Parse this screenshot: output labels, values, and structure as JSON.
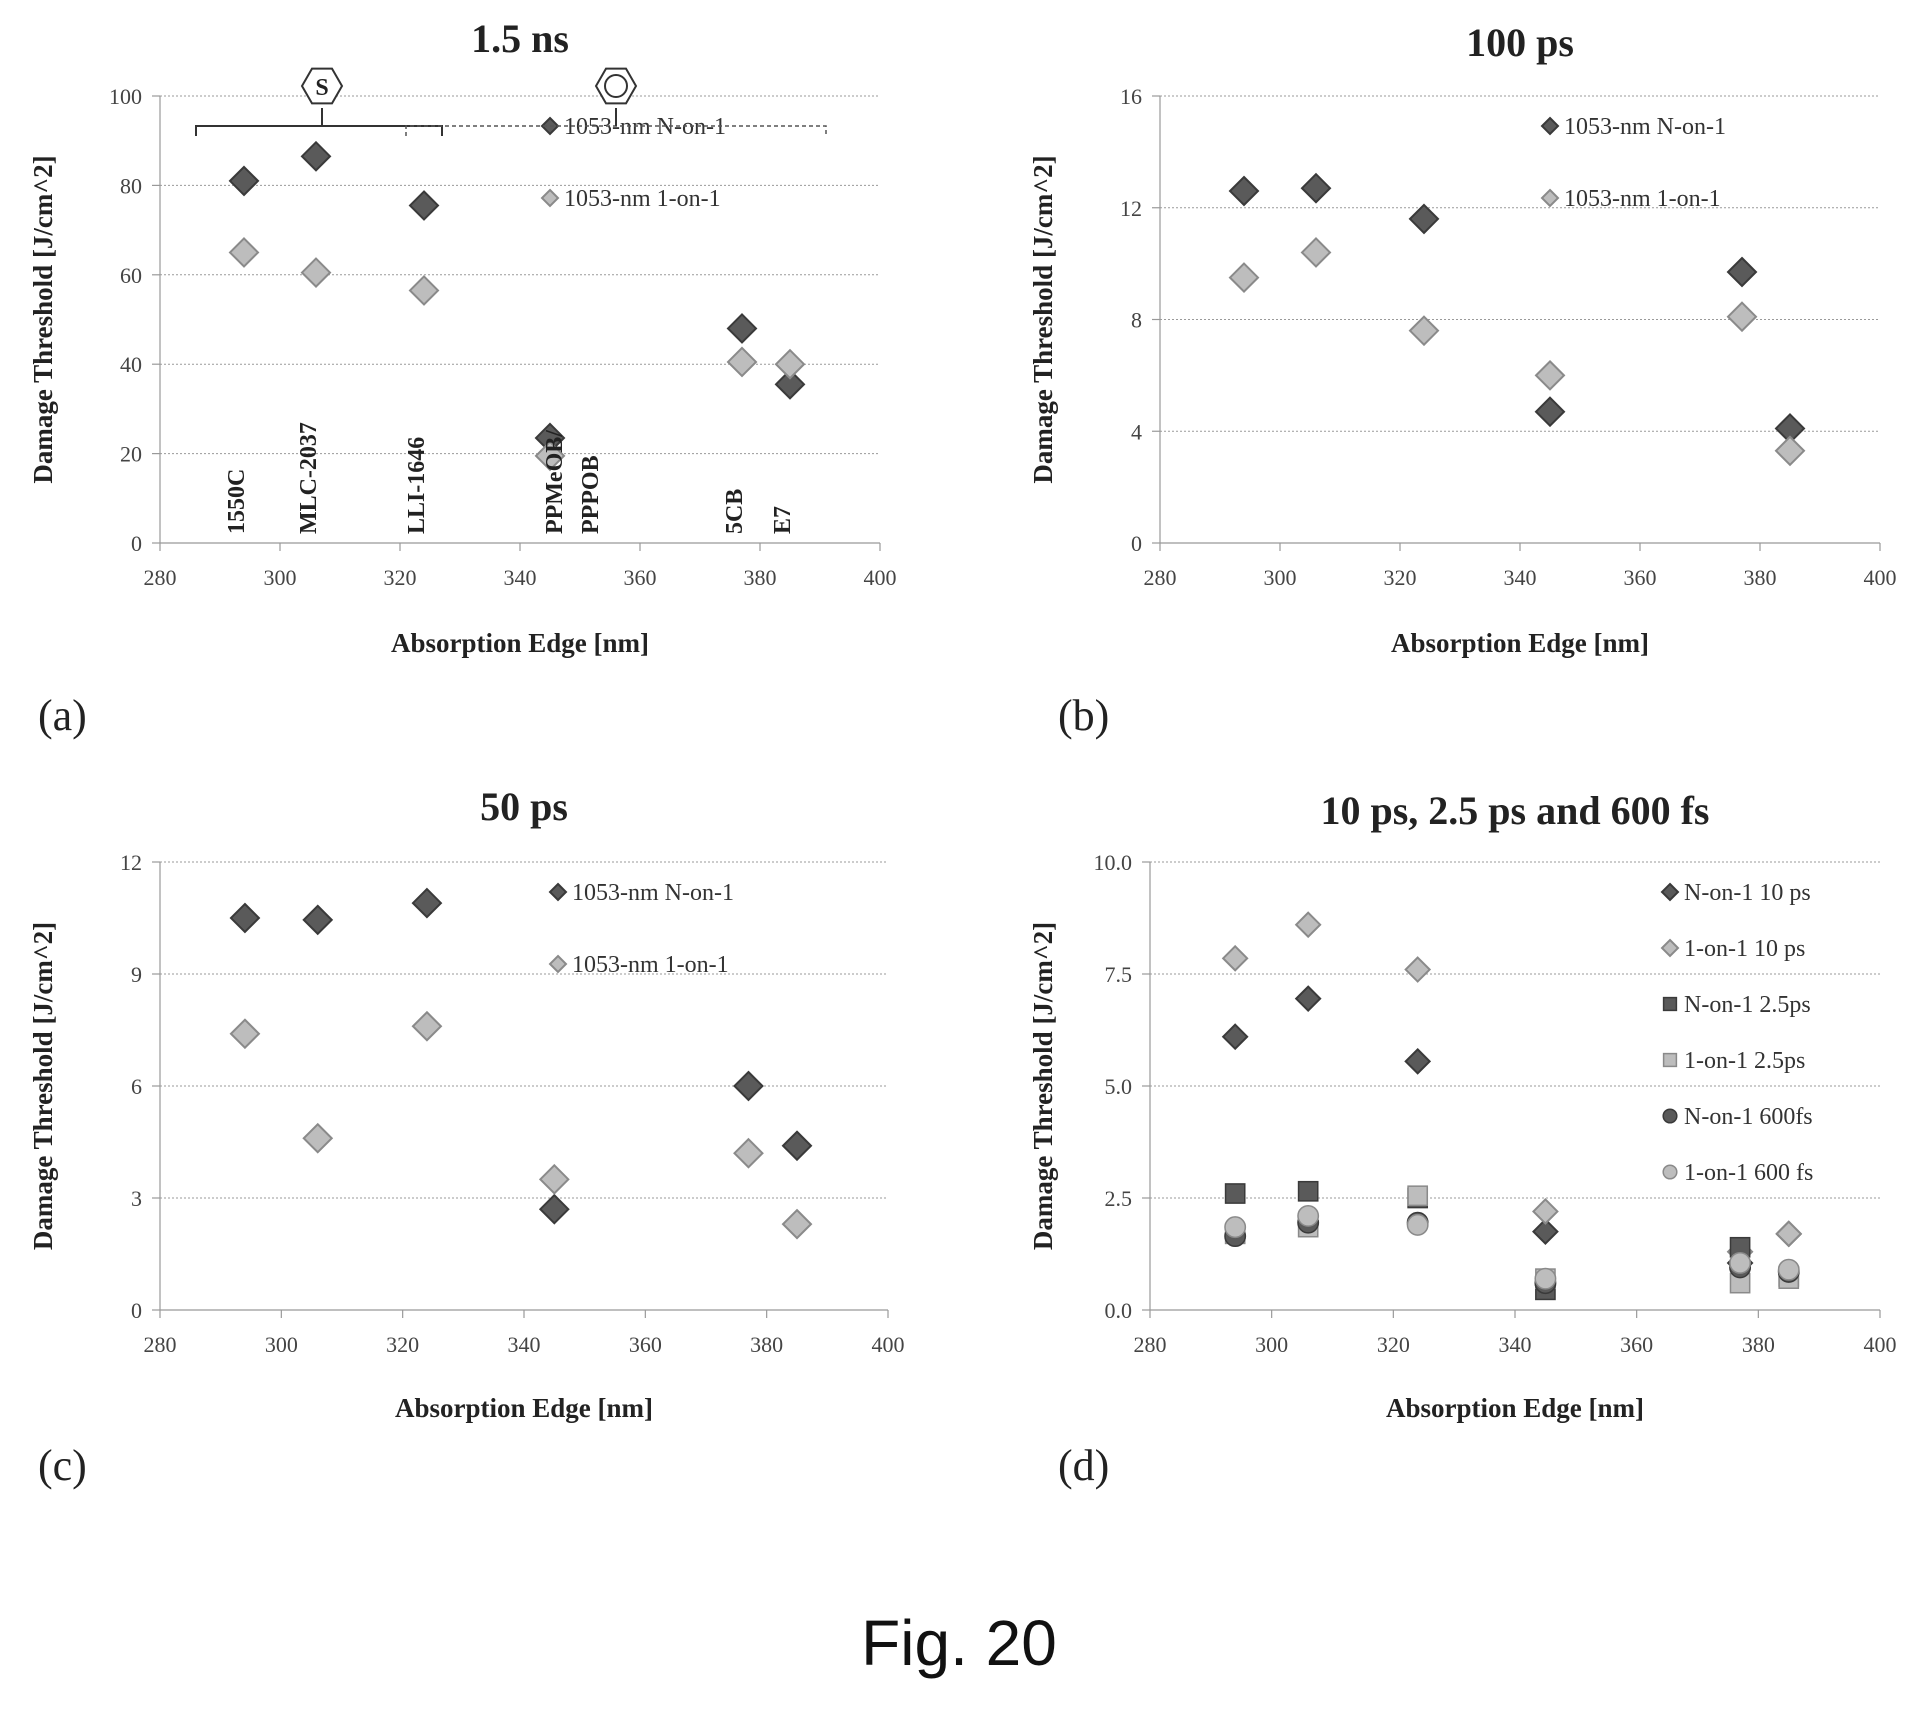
{
  "figure_caption": "Fig. 20",
  "colors": {
    "dark": "#5a5a5a",
    "light": "#bdbdbd",
    "dark_stroke": "#3a3a3a",
    "light_stroke": "#8a8a8a"
  },
  "chart_data": [
    {
      "panel_letter": "(a)",
      "type": "scatter",
      "title": "1.5 ns",
      "xlabel": "Absorption Edge [nm]",
      "ylabel": "Damage Threshold [J/cm^2]",
      "xlim": [
        280,
        400
      ],
      "ylim": [
        0,
        100
      ],
      "xticks": [
        280,
        300,
        320,
        340,
        360,
        380,
        400
      ],
      "yticks": [
        0,
        20,
        40,
        60,
        80,
        100
      ],
      "ytick_labels": [
        "0",
        "20",
        "40",
        "60",
        "80",
        "100"
      ],
      "grid": true,
      "legend_position": "top-right",
      "series": [
        {
          "name": "1053-nm N-on-1",
          "marker": "diamond",
          "color": "dark",
          "points": [
            [
              294,
              81
            ],
            [
              306,
              86.5
            ],
            [
              324,
              75.5
            ],
            [
              345,
              23.5
            ],
            [
              377,
              48
            ],
            [
              385,
              35.5
            ]
          ]
        },
        {
          "name": "1053-nm 1-on-1",
          "marker": "diamond",
          "color": "light",
          "points": [
            [
              294,
              65
            ],
            [
              306,
              60.5
            ],
            [
              324,
              56.5
            ],
            [
              345,
              19.5
            ],
            [
              377,
              40.5
            ],
            [
              385,
              40
            ]
          ]
        }
      ],
      "annotations": [
        {
          "text": "1550C",
          "x": 294
        },
        {
          "text": "MLC-2037",
          "x": 306
        },
        {
          "text": "LLI-1646",
          "x": 324
        },
        {
          "text": "PPMeOB/",
          "x": 347
        },
        {
          "text": "PPPOB",
          "x": 353
        },
        {
          "text": "5CB",
          "x": 377
        },
        {
          "text": "E7",
          "x": 385
        }
      ],
      "structure_labels": [
        "S",
        "benzene"
      ]
    },
    {
      "panel_letter": "(b)",
      "type": "scatter",
      "title": "100 ps",
      "xlabel": "Absorption Edge [nm]",
      "ylabel": "Damage Threshold [J/cm^2]",
      "xlim": [
        280,
        400
      ],
      "ylim": [
        0,
        16
      ],
      "xticks": [
        280,
        300,
        320,
        340,
        360,
        380,
        400
      ],
      "yticks": [
        0,
        4,
        8,
        12,
        16
      ],
      "ytick_labels": [
        "0",
        "4",
        "8",
        "12",
        "16"
      ],
      "grid": true,
      "legend_position": "top-right",
      "series": [
        {
          "name": "1053-nm N-on-1",
          "marker": "diamond",
          "color": "dark",
          "points": [
            [
              294,
              12.6
            ],
            [
              306,
              12.7
            ],
            [
              324,
              11.6
            ],
            [
              345,
              4.7
            ],
            [
              377,
              9.7
            ],
            [
              385,
              4.1
            ]
          ]
        },
        {
          "name": "1053-nm 1-on-1",
          "marker": "diamond",
          "color": "light",
          "points": [
            [
              294,
              9.5
            ],
            [
              306,
              10.4
            ],
            [
              324,
              7.6
            ],
            [
              345,
              6
            ],
            [
              377,
              8.1
            ],
            [
              385,
              3.3
            ]
          ]
        }
      ]
    },
    {
      "panel_letter": "(c)",
      "type": "scatter",
      "title": "50 ps",
      "xlabel": "Absorption Edge [nm]",
      "ylabel": "Damage Threshold [J/cm^2]",
      "xlim": [
        280,
        400
      ],
      "ylim": [
        0,
        12
      ],
      "xticks": [
        280,
        300,
        320,
        340,
        360,
        380,
        400
      ],
      "yticks": [
        0,
        3,
        6,
        9,
        12
      ],
      "ytick_labels": [
        "0",
        "3",
        "6",
        "9",
        "12"
      ],
      "grid": true,
      "legend_position": "top-right",
      "series": [
        {
          "name": "1053-nm N-on-1",
          "marker": "diamond",
          "color": "dark",
          "points": [
            [
              294,
              10.5
            ],
            [
              306,
              10.45
            ],
            [
              324,
              10.9
            ],
            [
              345,
              2.7
            ],
            [
              377,
              6
            ],
            [
              385,
              4.4
            ]
          ]
        },
        {
          "name": "1053-nm 1-on-1",
          "marker": "diamond",
          "color": "light",
          "points": [
            [
              294,
              7.4
            ],
            [
              306,
              4.6
            ],
            [
              324,
              7.6
            ],
            [
              345,
              3.5
            ],
            [
              377,
              4.2
            ],
            [
              385,
              2.3
            ]
          ]
        }
      ]
    },
    {
      "panel_letter": "(d)",
      "type": "scatter",
      "title": "10 ps, 2.5 ps and 600 fs",
      "xlabel": "Absorption Edge [nm]",
      "ylabel": "Damage Threshold [J/cm^2]",
      "xlim": [
        280,
        400
      ],
      "ylim": [
        0,
        10
      ],
      "xticks": [
        280,
        300,
        320,
        340,
        360,
        380,
        400
      ],
      "yticks": [
        0,
        2.5,
        5,
        7.5,
        10
      ],
      "ytick_labels": [
        "0.0",
        "2.5",
        "5.0",
        "7.5",
        "10.0"
      ],
      "grid": true,
      "legend_position": "top-right",
      "series": [
        {
          "name": "N-on-1 10 ps",
          "marker": "diamond",
          "color": "dark",
          "points": [
            [
              294,
              6.1
            ],
            [
              306,
              6.95
            ],
            [
              324,
              5.55
            ],
            [
              345,
              1.75
            ],
            [
              377,
              1.05
            ],
            [
              385,
              1.7
            ]
          ]
        },
        {
          "name": "1-on-1 10 ps",
          "marker": "diamond",
          "color": "light",
          "points": [
            [
              294,
              7.85
            ],
            [
              306,
              8.6
            ],
            [
              324,
              7.6
            ],
            [
              345,
              2.2
            ],
            [
              377,
              1.3
            ],
            [
              385,
              1.7
            ]
          ]
        },
        {
          "name": "N-on-1 2.5ps",
          "marker": "square",
          "color": "dark",
          "points": [
            [
              294,
              2.6
            ],
            [
              306,
              2.65
            ],
            [
              324,
              2.5
            ],
            [
              345,
              0.45
            ],
            [
              377,
              1.4
            ],
            [
              385,
              0.75
            ]
          ]
        },
        {
          "name": "1-on-1 2.5ps",
          "marker": "square",
          "color": "light",
          "points": [
            [
              294,
              1.7
            ],
            [
              306,
              1.85
            ],
            [
              324,
              2.55
            ],
            [
              345,
              0.7
            ],
            [
              377,
              0.6
            ],
            [
              385,
              0.7
            ]
          ]
        },
        {
          "name": "N-on-1 600fs",
          "marker": "circle",
          "color": "dark",
          "points": [
            [
              294,
              1.65
            ],
            [
              306,
              1.95
            ],
            [
              324,
              1.95
            ],
            [
              345,
              0.6
            ],
            [
              377,
              0.95
            ],
            [
              385,
              0.85
            ]
          ]
        },
        {
          "name": "1-on-1 600 fs",
          "marker": "circle",
          "color": "light",
          "points": [
            [
              294,
              1.85
            ],
            [
              306,
              2.1
            ],
            [
              324,
              1.9
            ],
            [
              345,
              0.7
            ],
            [
              377,
              1.05
            ],
            [
              385,
              0.9
            ]
          ]
        }
      ]
    }
  ]
}
